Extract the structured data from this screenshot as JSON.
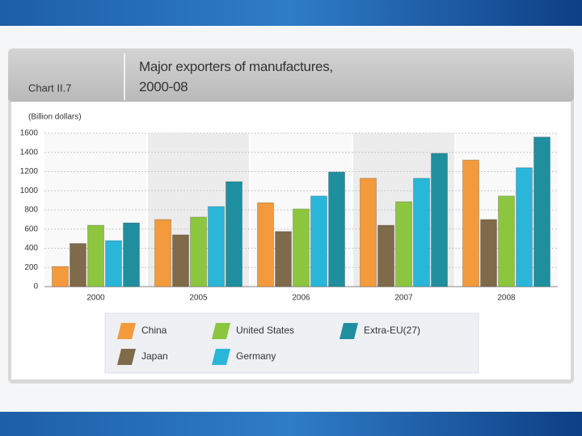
{
  "chart_data": {
    "type": "bar",
    "label": "Chart II.7",
    "title": "Major exporters of manufactures, 2000-08",
    "ylabel": "(Billion dollars)",
    "categories": [
      "2000",
      "2005",
      "2006",
      "2007",
      "2008"
    ],
    "series": [
      {
        "name": "China",
        "color": "#f39a3c",
        "values": [
          210,
          700,
          875,
          1130,
          1320
        ]
      },
      {
        "name": "Japan",
        "color": "#7f6a4a",
        "values": [
          450,
          540,
          575,
          640,
          700
        ]
      },
      {
        "name": "United States",
        "color": "#8cc63f",
        "values": [
          640,
          725,
          810,
          885,
          945
        ]
      },
      {
        "name": "Germany",
        "color": "#29b6d9",
        "values": [
          480,
          835,
          945,
          1130,
          1240
        ]
      },
      {
        "name": "Extra-EU(27)",
        "color": "#1f8fa0",
        "values": [
          665,
          1095,
          1195,
          1390,
          1560
        ]
      }
    ],
    "ylim": [
      0,
      1600
    ],
    "yticks": [
      0,
      200,
      400,
      600,
      800,
      1000,
      1200,
      1400,
      1600
    ],
    "grid": true
  }
}
